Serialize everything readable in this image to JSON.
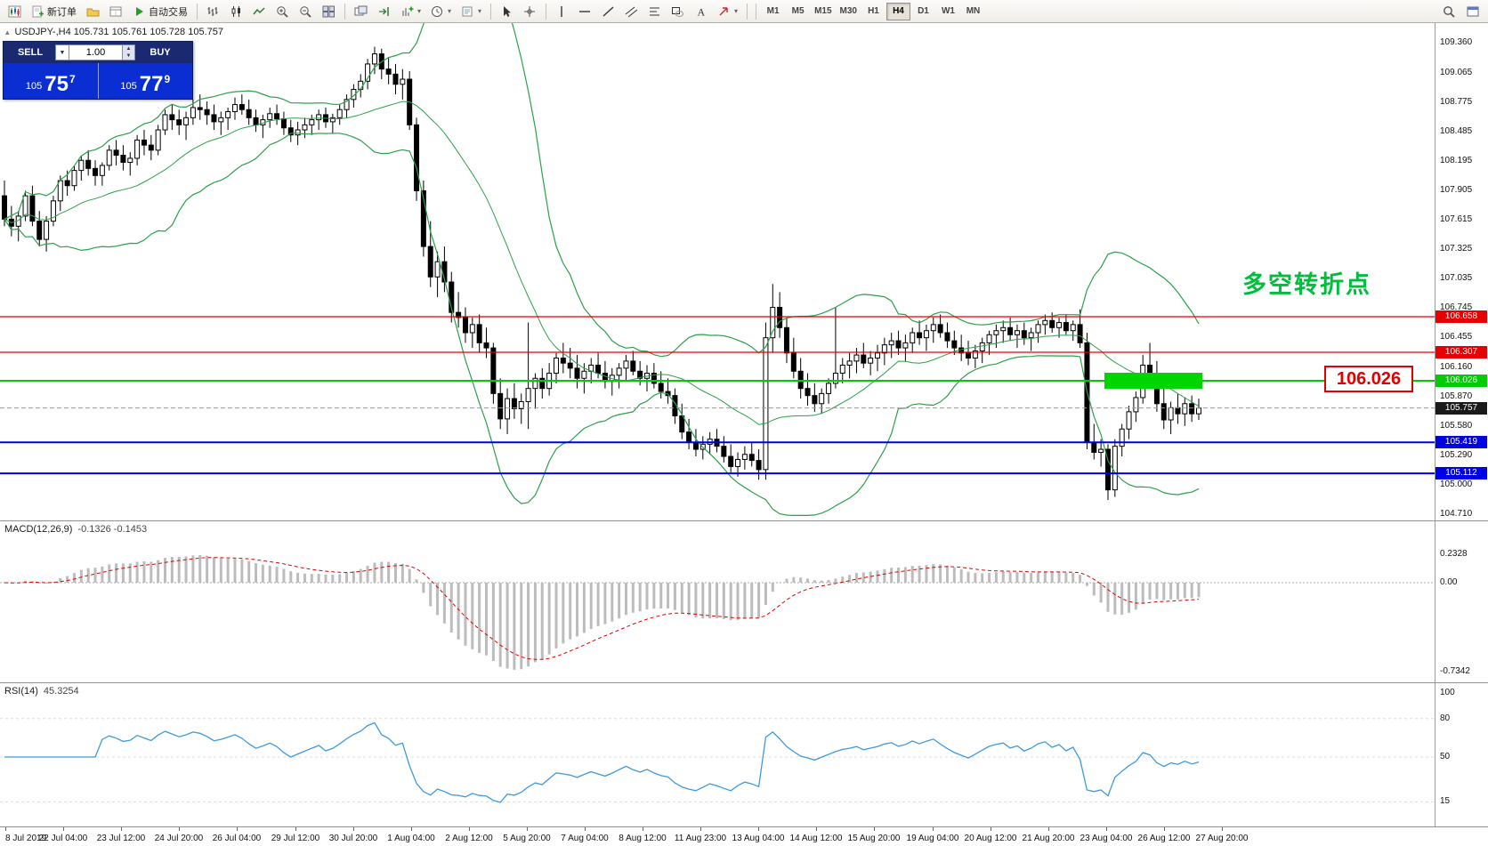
{
  "toolbar": {
    "items": [
      {
        "name": "chart-window-icon",
        "icon": "minichart"
      },
      {
        "name": "new-order-button",
        "icon": "neworder",
        "label": "新订单"
      },
      {
        "name": "profiles-icon",
        "icon": "folder"
      },
      {
        "name": "data-window-icon",
        "icon": "datawin"
      },
      {
        "name": "autotrading-button",
        "icon": "play",
        "label": "自动交易"
      },
      {
        "sep": true
      },
      {
        "name": "bar-chart-icon",
        "icon": "bars"
      },
      {
        "name": "candlestick-chart-icon",
        "icon": "candles"
      },
      {
        "name": "line-chart-icon",
        "icon": "linechart"
      },
      {
        "name": "zoom-in-icon",
        "icon": "zoomin"
      },
      {
        "name": "zoom-out-icon",
        "icon": "zoomout"
      },
      {
        "name": "tile-windows-icon",
        "icon": "tile"
      },
      {
        "sep": true
      },
      {
        "name": "arrange-windows-icon",
        "icon": "arrange"
      },
      {
        "name": "auto-scroll-icon",
        "icon": "shift"
      },
      {
        "name": "indicators-icon",
        "icon": "indicators",
        "dropdown": true
      },
      {
        "name": "periods-icon",
        "icon": "clock",
        "dropdown": true
      },
      {
        "name": "templates-icon",
        "icon": "template",
        "dropdown": true
      },
      {
        "sep": true
      },
      {
        "name": "cursor-icon",
        "icon": "cursor"
      },
      {
        "name": "crosshair-icon",
        "icon": "crosshair"
      },
      {
        "sep": true
      },
      {
        "name": "vertical-line-icon",
        "icon": "vline"
      },
      {
        "name": "horizontal-line-icon",
        "icon": "hline"
      },
      {
        "name": "trendline-icon",
        "icon": "trend"
      },
      {
        "name": "channel-icon",
        "icon": "channel"
      },
      {
        "name": "fibonacci-icon",
        "icon": "fibo"
      },
      {
        "name": "shapes-icon",
        "icon": "shapes"
      },
      {
        "name": "text-icon",
        "icon": "text"
      },
      {
        "name": "arrow-objects-icon",
        "icon": "arrowmark",
        "dropdown": true
      },
      {
        "sep": true
      }
    ],
    "timeframes": [
      "M1",
      "M5",
      "M15",
      "M30",
      "H1",
      "H4",
      "D1",
      "W1",
      "MN"
    ],
    "active_timeframe": "H4",
    "right_items": [
      {
        "name": "search-icon",
        "icon": "search"
      },
      {
        "name": "new-window-icon",
        "icon": "newwindow"
      }
    ]
  },
  "one_click": {
    "sell_label": "SELL",
    "buy_label": "BUY",
    "volume": "1.00",
    "sell_price": {
      "small": "105",
      "big": "75",
      "sup": "7"
    },
    "buy_price": {
      "small": "105",
      "big": "77",
      "sup": "9"
    }
  },
  "annotations": {
    "headline": "多空转折点",
    "headline_color": "#00BE3C",
    "callout": "106.026",
    "callout_color": "#E00000",
    "zone": {
      "price": 106.026,
      "from_candle": 158,
      "to_candle": 171,
      "color": "#00D500"
    }
  },
  "macd": {
    "title": "MACD(12,26,9)",
    "values": "-0.1326 -0.1453",
    "scale": [
      "0.2328",
      "0.00",
      "-0.7342"
    ],
    "histogram_color": "#bcbcbc",
    "signal_color": "#e00000"
  },
  "rsi": {
    "title": "RSI(14)",
    "value": "45.3254",
    "scale": [
      "100",
      "80",
      "50",
      "15"
    ],
    "line_color": "#3e9adb"
  },
  "chart_data": {
    "type": "candlestick",
    "symbol": "USDJPY-",
    "timeframe": "H4",
    "symbol_ohlc": "USDJPY-,H4  105.731 105.761 105.728 105.757",
    "current_price": {
      "value": 105.757,
      "label": "105.757",
      "tag_color": "#1a1a1a"
    },
    "levels": [
      {
        "price": 106.658,
        "label": "106.658",
        "color": "#E60000",
        "width": 1.3
      },
      {
        "price": 106.307,
        "label": "106.307",
        "color": "#E60000",
        "width": 1.3
      },
      {
        "price": 106.026,
        "label": "106.026",
        "color": "#00CC00",
        "width": 2
      },
      {
        "price": 105.419,
        "label": "105.419",
        "color": "#0000E6",
        "width": 2
      },
      {
        "price": 105.112,
        "label": "105.112",
        "color": "#0000E6",
        "width": 2
      }
    ],
    "price_axis": [
      "109.360",
      "109.065",
      "108.775",
      "108.485",
      "108.195",
      "107.905",
      "107.615",
      "107.325",
      "107.035",
      "106.745",
      "106.455",
      "106.160",
      "105.870",
      "105.580",
      "105.290",
      "105.000",
      "104.710"
    ],
    "time_axis": [
      "8 Jul 2019",
      "22 Jul 04:00",
      "23 Jul 12:00",
      "24 Jul 20:00",
      "26 Jul 04:00",
      "29 Jul 12:00",
      "30 Jul 20:00",
      "1 Aug 04:00",
      "2 Aug 12:00",
      "5 Aug 20:00",
      "7 Aug 04:00",
      "8 Aug 12:00",
      "11 Aug 23:00",
      "13 Aug 04:00",
      "14 Aug 12:00",
      "15 Aug 20:00",
      "19 Aug 04:00",
      "20 Aug 12:00",
      "21 Aug 20:00",
      "23 Aug 04:00",
      "26 Aug 12:00",
      "27 Aug 20:00"
    ],
    "indicators": {
      "bollinger": {
        "period": 20,
        "deviation": 2,
        "color": "#2ca04a"
      }
    },
    "candles": [
      [
        107.85,
        108.0,
        107.55,
        107.62
      ],
      [
        107.62,
        107.75,
        107.45,
        107.55
      ],
      [
        107.55,
        107.7,
        107.4,
        107.65
      ],
      [
        107.65,
        107.9,
        107.6,
        107.85
      ],
      [
        107.85,
        107.95,
        107.55,
        107.6
      ],
      [
        107.6,
        107.7,
        107.35,
        107.42
      ],
      [
        107.42,
        107.65,
        107.3,
        107.6
      ],
      [
        107.6,
        107.85,
        107.55,
        107.8
      ],
      [
        107.8,
        108.05,
        107.7,
        108.0
      ],
      [
        108.0,
        108.1,
        107.85,
        107.95
      ],
      [
        107.95,
        108.15,
        107.9,
        108.1
      ],
      [
        108.1,
        108.25,
        108.0,
        108.2
      ],
      [
        108.2,
        108.3,
        108.05,
        108.12
      ],
      [
        108.12,
        108.2,
        107.95,
        108.05
      ],
      [
        108.05,
        108.18,
        107.95,
        108.15
      ],
      [
        108.15,
        108.35,
        108.1,
        108.3
      ],
      [
        108.3,
        108.4,
        108.15,
        108.25
      ],
      [
        108.25,
        108.35,
        108.1,
        108.18
      ],
      [
        108.18,
        108.28,
        108.05,
        108.22
      ],
      [
        108.22,
        108.45,
        108.15,
        108.4
      ],
      [
        108.4,
        108.5,
        108.25,
        108.35
      ],
      [
        108.35,
        108.45,
        108.2,
        108.3
      ],
      [
        108.3,
        108.55,
        108.25,
        108.5
      ],
      [
        108.5,
        108.7,
        108.45,
        108.65
      ],
      [
        108.65,
        108.75,
        108.5,
        108.6
      ],
      [
        108.6,
        108.7,
        108.45,
        108.55
      ],
      [
        108.55,
        108.68,
        108.4,
        108.62
      ],
      [
        108.62,
        108.8,
        108.55,
        108.72
      ],
      [
        108.72,
        108.85,
        108.6,
        108.7
      ],
      [
        108.7,
        108.78,
        108.55,
        108.65
      ],
      [
        108.65,
        108.75,
        108.5,
        108.58
      ],
      [
        108.58,
        108.68,
        108.45,
        108.62
      ],
      [
        108.62,
        108.72,
        108.5,
        108.68
      ],
      [
        108.68,
        108.82,
        108.6,
        108.75
      ],
      [
        108.75,
        108.85,
        108.65,
        108.7
      ],
      [
        108.7,
        108.8,
        108.55,
        108.62
      ],
      [
        108.62,
        108.7,
        108.48,
        108.55
      ],
      [
        108.55,
        108.65,
        108.42,
        108.6
      ],
      [
        108.6,
        108.72,
        108.52,
        108.66
      ],
      [
        108.66,
        108.75,
        108.55,
        108.61
      ],
      [
        108.61,
        108.68,
        108.45,
        108.52
      ],
      [
        108.52,
        108.6,
        108.38,
        108.45
      ],
      [
        108.45,
        108.58,
        108.35,
        108.5
      ],
      [
        108.5,
        108.62,
        108.42,
        108.55
      ],
      [
        108.55,
        108.65,
        108.45,
        108.6
      ],
      [
        108.6,
        108.7,
        108.5,
        108.65
      ],
      [
        108.65,
        108.72,
        108.52,
        108.58
      ],
      [
        108.58,
        108.66,
        108.46,
        108.62
      ],
      [
        108.62,
        108.75,
        108.55,
        108.7
      ],
      [
        108.7,
        108.85,
        108.62,
        108.8
      ],
      [
        108.8,
        108.95,
        108.72,
        108.9
      ],
      [
        108.9,
        109.05,
        108.82,
        108.98
      ],
      [
        108.98,
        109.2,
        108.9,
        109.15
      ],
      [
        109.15,
        109.32,
        109.05,
        109.25
      ],
      [
        109.25,
        109.3,
        109.0,
        109.1
      ],
      [
        109.1,
        109.22,
        108.95,
        109.05
      ],
      [
        109.05,
        109.15,
        108.85,
        108.95
      ],
      [
        108.95,
        109.1,
        108.8,
        109.0
      ],
      [
        109.0,
        109.08,
        108.5,
        108.55
      ],
      [
        108.55,
        108.62,
        107.8,
        107.9
      ],
      [
        107.9,
        108.0,
        107.25,
        107.35
      ],
      [
        107.35,
        107.6,
        106.95,
        107.05
      ],
      [
        107.05,
        107.3,
        106.85,
        107.2
      ],
      [
        107.2,
        107.35,
        106.9,
        107.0
      ],
      [
        107.0,
        107.1,
        106.6,
        106.7
      ],
      [
        106.7,
        106.9,
        106.55,
        106.65
      ],
      [
        106.65,
        106.75,
        106.4,
        106.5
      ],
      [
        106.5,
        106.65,
        106.35,
        106.58
      ],
      [
        106.58,
        106.68,
        106.3,
        106.4
      ],
      [
        106.4,
        106.55,
        106.25,
        106.35
      ],
      [
        106.35,
        106.4,
        105.8,
        105.9
      ],
      [
        105.9,
        106.05,
        105.55,
        105.65
      ],
      [
        105.65,
        105.95,
        105.5,
        105.85
      ],
      [
        105.85,
        106.0,
        105.65,
        105.75
      ],
      [
        105.75,
        105.9,
        105.6,
        105.82
      ],
      [
        105.82,
        106.6,
        105.55,
        105.95
      ],
      [
        105.95,
        106.1,
        105.75,
        106.05
      ],
      [
        106.05,
        106.15,
        105.85,
        105.95
      ],
      [
        105.95,
        106.2,
        105.88,
        106.1
      ],
      [
        106.1,
        106.3,
        106.0,
        106.25
      ],
      [
        106.25,
        106.4,
        106.1,
        106.2
      ],
      [
        106.2,
        106.35,
        106.05,
        106.15
      ],
      [
        106.15,
        106.28,
        105.95,
        106.05
      ],
      [
        106.05,
        106.2,
        105.9,
        106.12
      ],
      [
        106.12,
        106.25,
        106.0,
        106.18
      ],
      [
        106.18,
        106.3,
        106.05,
        106.1
      ],
      [
        106.1,
        106.22,
        105.95,
        106.02
      ],
      [
        106.02,
        106.15,
        105.88,
        106.08
      ],
      [
        106.08,
        106.2,
        105.95,
        106.15
      ],
      [
        106.15,
        106.28,
        106.02,
        106.22
      ],
      [
        106.22,
        106.32,
        106.08,
        106.12
      ],
      [
        106.12,
        106.22,
        105.98,
        106.05
      ],
      [
        106.05,
        106.18,
        105.92,
        106.1
      ],
      [
        106.1,
        106.2,
        105.95,
        106.0
      ],
      [
        106.0,
        106.12,
        105.85,
        105.92
      ],
      [
        105.92,
        106.05,
        105.8,
        105.88
      ],
      [
        105.88,
        105.95,
        105.6,
        105.68
      ],
      [
        105.68,
        105.8,
        105.45,
        105.52
      ],
      [
        105.52,
        105.65,
        105.35,
        105.42
      ],
      [
        105.42,
        105.55,
        105.28,
        105.35
      ],
      [
        105.35,
        105.48,
        105.25,
        105.4
      ],
      [
        105.4,
        105.52,
        105.3,
        105.45
      ],
      [
        105.45,
        105.55,
        105.32,
        105.38
      ],
      [
        105.38,
        105.48,
        105.22,
        105.28
      ],
      [
        105.28,
        105.4,
        105.12,
        105.18
      ],
      [
        105.18,
        105.32,
        105.08,
        105.25
      ],
      [
        105.25,
        105.38,
        105.15,
        105.3
      ],
      [
        105.3,
        105.42,
        105.18,
        105.24
      ],
      [
        105.24,
        105.35,
        105.05,
        105.15
      ],
      [
        105.15,
        106.6,
        105.05,
        106.45
      ],
      [
        106.45,
        106.98,
        106.3,
        106.75
      ],
      [
        106.75,
        106.9,
        106.45,
        106.55
      ],
      [
        106.55,
        106.65,
        106.2,
        106.3
      ],
      [
        106.3,
        106.45,
        106.05,
        106.12
      ],
      [
        106.12,
        106.25,
        105.85,
        105.95
      ],
      [
        105.95,
        106.1,
        105.78,
        105.88
      ],
      [
        105.88,
        106.0,
        105.72,
        105.8
      ],
      [
        105.8,
        105.95,
        105.7,
        105.9
      ],
      [
        105.9,
        106.05,
        105.8,
        106.0
      ],
      [
        106.0,
        106.75,
        105.95,
        106.1
      ],
      [
        106.1,
        106.25,
        106.0,
        106.18
      ],
      [
        106.18,
        106.3,
        106.05,
        106.22
      ],
      [
        106.22,
        106.35,
        106.1,
        106.28
      ],
      [
        106.28,
        106.4,
        106.15,
        106.2
      ],
      [
        106.2,
        106.32,
        106.08,
        106.25
      ],
      [
        106.25,
        106.38,
        106.12,
        106.3
      ],
      [
        106.3,
        106.45,
        106.18,
        106.38
      ],
      [
        106.38,
        106.5,
        106.25,
        106.42
      ],
      [
        106.42,
        106.52,
        106.28,
        106.35
      ],
      [
        106.35,
        106.48,
        106.22,
        106.4
      ],
      [
        106.4,
        106.55,
        106.3,
        106.5
      ],
      [
        106.5,
        106.62,
        106.38,
        106.45
      ],
      [
        106.45,
        106.58,
        106.32,
        106.52
      ],
      [
        106.52,
        106.65,
        106.4,
        106.58
      ],
      [
        106.58,
        106.68,
        106.45,
        106.5
      ],
      [
        106.5,
        106.6,
        106.35,
        106.42
      ],
      [
        106.42,
        106.52,
        106.28,
        106.35
      ],
      [
        106.35,
        106.48,
        106.22,
        106.3
      ],
      [
        106.3,
        106.42,
        106.18,
        106.25
      ],
      [
        106.25,
        106.38,
        106.15,
        106.32
      ],
      [
        106.32,
        106.45,
        106.2,
        106.4
      ],
      [
        106.4,
        106.52,
        106.28,
        106.48
      ],
      [
        106.48,
        106.58,
        106.35,
        106.52
      ],
      [
        106.52,
        106.62,
        106.4,
        106.55
      ],
      [
        106.55,
        106.65,
        106.42,
        106.48
      ],
      [
        106.48,
        106.58,
        106.35,
        106.52
      ],
      [
        106.52,
        106.6,
        106.38,
        106.45
      ],
      [
        106.45,
        106.55,
        106.32,
        106.5
      ],
      [
        106.5,
        106.62,
        106.4,
        106.58
      ],
      [
        106.58,
        106.68,
        106.48,
        106.62
      ],
      [
        106.62,
        106.7,
        106.5,
        106.55
      ],
      [
        106.55,
        106.65,
        106.45,
        106.6
      ],
      [
        106.6,
        106.68,
        106.48,
        106.52
      ],
      [
        106.52,
        106.62,
        106.42,
        106.58
      ],
      [
        106.58,
        106.73,
        106.35,
        106.4
      ],
      [
        106.4,
        106.5,
        105.35,
        105.42
      ],
      [
        105.42,
        105.6,
        105.25,
        105.32
      ],
      [
        105.32,
        105.45,
        105.18,
        105.35
      ],
      [
        105.35,
        105.4,
        104.85,
        104.95
      ],
      [
        104.95,
        105.45,
        104.88,
        105.38
      ],
      [
        105.38,
        105.6,
        105.28,
        105.55
      ],
      [
        105.55,
        105.78,
        105.45,
        105.72
      ],
      [
        105.72,
        105.92,
        105.62,
        105.86
      ],
      [
        105.86,
        106.28,
        105.8,
        106.18
      ],
      [
        106.18,
        106.4,
        106.02,
        106.1
      ],
      [
        106.1,
        106.22,
        105.72,
        105.8
      ],
      [
        105.8,
        105.95,
        105.55,
        105.64
      ],
      [
        105.64,
        105.82,
        105.5,
        105.76
      ],
      [
        105.76,
        105.9,
        105.6,
        105.7
      ],
      [
        105.7,
        105.86,
        105.58,
        105.8
      ],
      [
        105.8,
        105.88,
        105.62,
        105.7
      ],
      [
        105.7,
        105.85,
        105.64,
        105.757
      ]
    ]
  }
}
